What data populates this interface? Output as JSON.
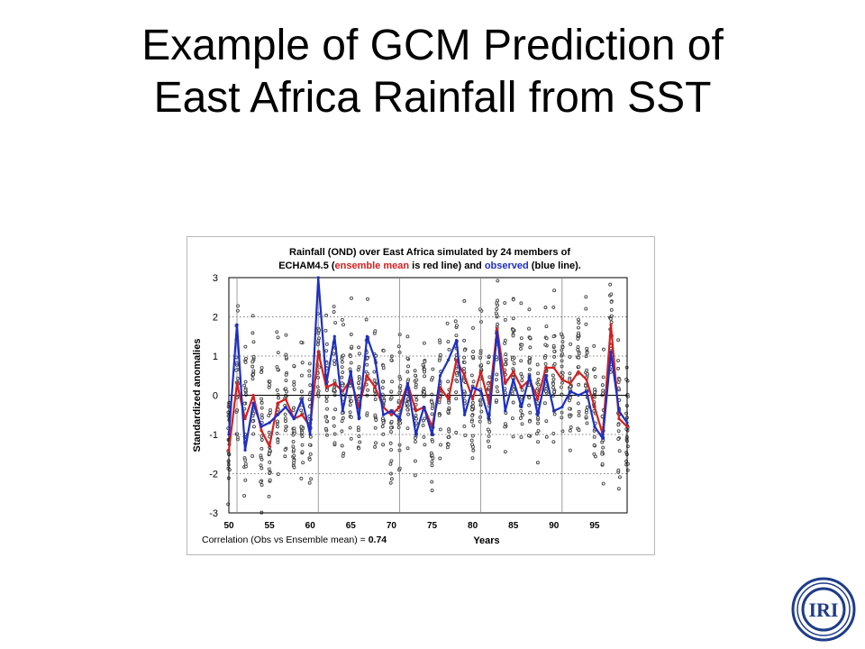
{
  "slide": {
    "title_line1": "Example of GCM Prediction of",
    "title_line2": "East Africa Rainfall from SST"
  },
  "logo": {
    "text": "IRI"
  },
  "chart_data": {
    "type": "line",
    "title_line1": "Rainfall (OND) over East Africa simulated by 24 members of",
    "title_line2_a": "ECHAM4.5 (",
    "title_line2_b": "ensemble mean",
    "title_line2_c": " is red line) and ",
    "title_line2_d": "observed",
    "title_line2_e": " (blue line).",
    "xlabel": "Years",
    "ylabel": "Standardized anomalies",
    "xlim": [
      1950,
      1999
    ],
    "ylim": [
      -3,
      3
    ],
    "x_ticks": [
      50,
      55,
      60,
      65,
      70,
      75,
      80,
      85,
      90,
      95
    ],
    "y_ticks": [
      3,
      2,
      1,
      0,
      -1,
      -2,
      -3
    ],
    "correlation_label": "Correlation (Obs vs Ensemble mean) = ",
    "correlation_value": "0.74",
    "colors": {
      "ensemble_mean": "#d42020",
      "observed": "#1c2fc4",
      "members": "#444444"
    },
    "years": [
      1950,
      1951,
      1952,
      1953,
      1954,
      1955,
      1956,
      1957,
      1958,
      1959,
      1960,
      1961,
      1962,
      1963,
      1964,
      1965,
      1966,
      1967,
      1968,
      1969,
      1970,
      1971,
      1972,
      1973,
      1974,
      1975,
      1976,
      1977,
      1978,
      1979,
      1980,
      1981,
      1982,
      1983,
      1984,
      1985,
      1986,
      1987,
      1988,
      1989,
      1990,
      1991,
      1992,
      1993,
      1994,
      1995,
      1996,
      1997,
      1998,
      1999
    ],
    "series": [
      {
        "name": "ensemble mean",
        "values": [
          -1.4,
          0.3,
          -0.6,
          0.0,
          -0.9,
          -1.3,
          -0.2,
          -0.1,
          -0.6,
          -0.5,
          -0.8,
          1.1,
          0.2,
          0.3,
          0.1,
          0.4,
          -0.3,
          0.5,
          0.2,
          -0.3,
          -0.5,
          -0.3,
          0.3,
          -0.4,
          -0.3,
          -0.8,
          0.2,
          -0.1,
          0.9,
          0.5,
          -0.1,
          0.6,
          -0.2,
          1.7,
          0.3,
          0.6,
          0.2,
          0.4,
          -0.1,
          0.7,
          0.7,
          0.4,
          0.3,
          0.6,
          0.4,
          -0.3,
          -1.0,
          1.8,
          -0.6,
          -0.8
        ]
      },
      {
        "name": "observed",
        "values": [
          -1.0,
          1.8,
          -1.4,
          -0.2,
          -0.8,
          -0.7,
          -0.5,
          -0.3,
          -0.6,
          -0.1,
          -1.0,
          3.0,
          0.3,
          1.5,
          -0.4,
          0.6,
          -0.6,
          1.5,
          0.9,
          -0.5,
          -0.4,
          -0.6,
          0.3,
          -1.0,
          -0.3,
          -1.0,
          0.5,
          0.9,
          1.4,
          -0.5,
          0.2,
          0.1,
          -0.6,
          1.6,
          -0.4,
          0.4,
          -0.3,
          0.5,
          -0.5,
          0.5,
          -0.4,
          -0.3,
          0.1,
          0.0,
          0.1,
          -0.8,
          -1.1,
          1.1,
          -0.4,
          -0.7
        ]
      }
    ]
  }
}
